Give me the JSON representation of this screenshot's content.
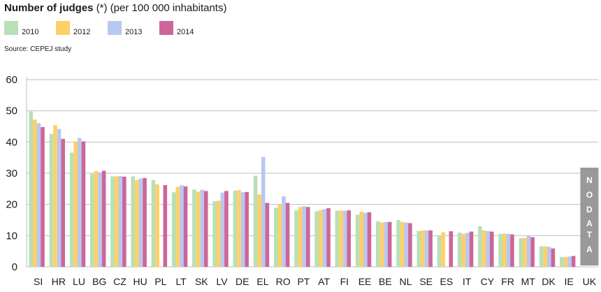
{
  "title": {
    "bold": "Number of judges",
    "mark": "(*)",
    "rest": "(per 100 000 inhabitants)"
  },
  "source": "Source: CEPEJ study",
  "colors": {
    "2010": "#b8e0b8",
    "2012": "#ffd066",
    "2013": "#b9c8f0",
    "2014": "#cc6699",
    "nodata": "#999999",
    "grid": "#bfbfbf"
  },
  "chart_data": {
    "type": "bar",
    "title": "Number of judges (*) (per 100 000 inhabitants)",
    "xlabel": "",
    "ylabel": "",
    "ylim": [
      0,
      60
    ],
    "yticks": [
      0,
      10,
      20,
      30,
      40,
      50,
      60
    ],
    "grid": true,
    "legend_position": "top-left",
    "categories": [
      "SI",
      "HR",
      "LU",
      "BG",
      "CZ",
      "HU",
      "PL",
      "LT",
      "SK",
      "LV",
      "DE",
      "EL",
      "RO",
      "PT",
      "AT",
      "FI",
      "EE",
      "BE",
      "NL",
      "SE",
      "ES",
      "IT",
      "CY",
      "FR",
      "MT",
      "DK",
      "IE",
      "UK"
    ],
    "series": [
      {
        "name": "2010",
        "values": [
          49.8,
          42.6,
          36.6,
          29.8,
          29.0,
          29.0,
          27.8,
          23.9,
          24.8,
          21.0,
          24.4,
          29.2,
          18.9,
          18.1,
          17.8,
          18.0,
          16.7,
          14.6,
          15.0,
          11.5,
          10.0,
          11.0,
          13.0,
          10.6,
          9.2,
          6.6,
          3.2,
          null
        ]
      },
      {
        "name": "2012",
        "values": [
          47.2,
          45.4,
          40.2,
          30.7,
          29.0,
          27.8,
          26.4,
          25.6,
          24.1,
          21.2,
          24.6,
          23.2,
          20.0,
          19.2,
          18.2,
          18.0,
          17.7,
          14.2,
          14.4,
          11.7,
          11.1,
          10.6,
          11.7,
          10.6,
          9.3,
          6.6,
          3.1,
          null
        ]
      },
      {
        "name": "2013",
        "values": [
          46.0,
          44.2,
          41.3,
          30.3,
          29.1,
          28.3,
          null,
          26.2,
          24.7,
          23.8,
          23.9,
          35.2,
          22.6,
          19.4,
          18.5,
          18.0,
          17.3,
          14.4,
          14.2,
          11.7,
          null,
          10.9,
          11.5,
          10.6,
          9.9,
          6.4,
          3.3,
          null
        ]
      },
      {
        "name": "2014",
        "values": [
          44.8,
          41.0,
          40.2,
          30.8,
          28.9,
          28.5,
          26.2,
          25.8,
          24.3,
          24.3,
          24.0,
          20.5,
          20.5,
          19.2,
          18.8,
          18.1,
          17.5,
          14.4,
          14.0,
          11.7,
          11.4,
          11.3,
          11.3,
          10.4,
          9.5,
          5.9,
          3.5,
          null
        ]
      }
    ],
    "annotations": [
      {
        "category": "UK",
        "text": [
          "N",
          "O",
          "D",
          "A",
          "T",
          "A"
        ]
      }
    ]
  }
}
